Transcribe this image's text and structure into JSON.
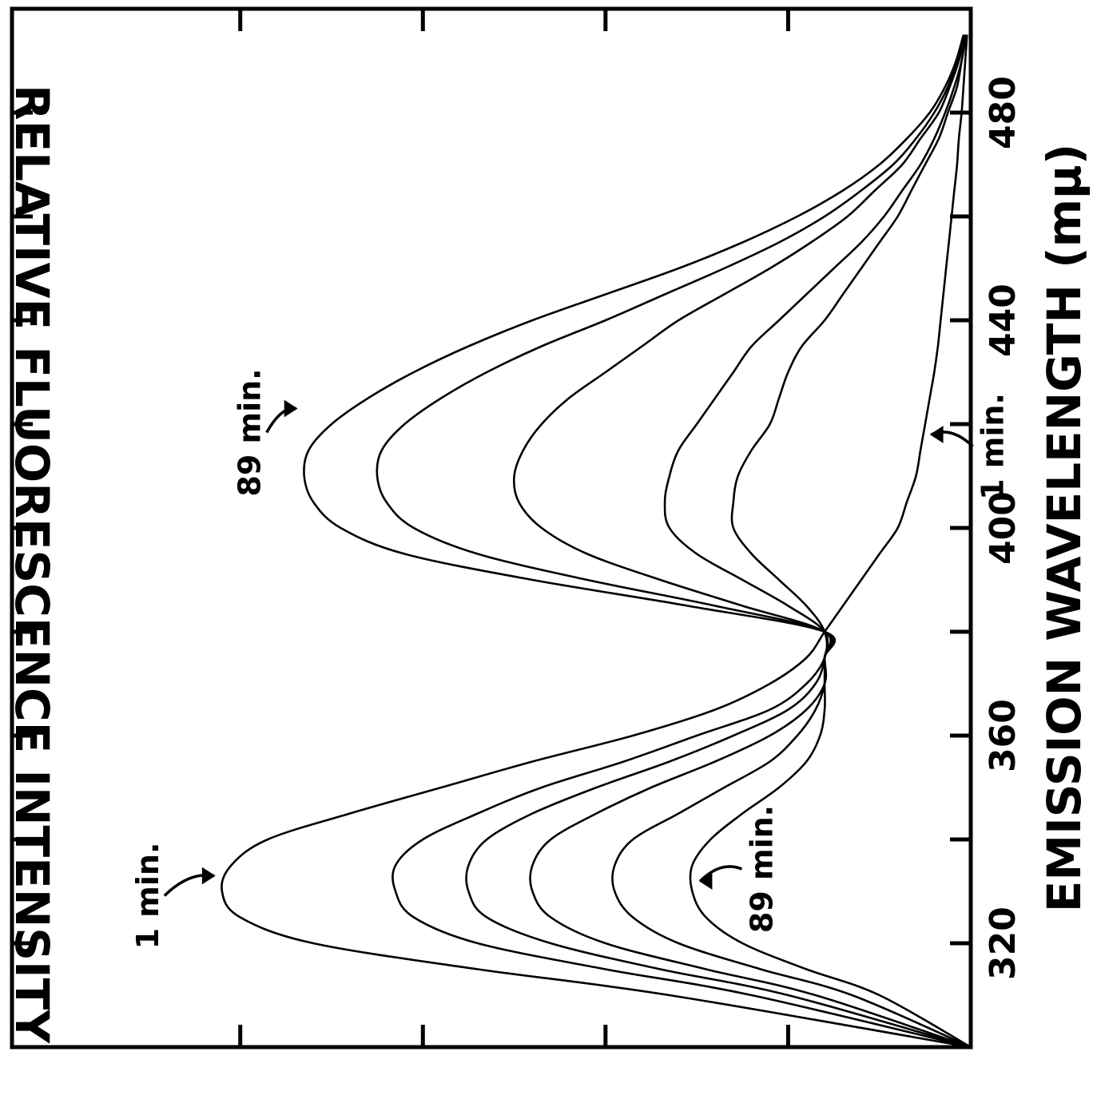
{
  "chart_data": {
    "type": "line",
    "title": "",
    "xlabel": "EMISSION WAVELENGTH (mμ)",
    "ylabel": "RELATIVE FLUORESCENCE INTENSITY",
    "xlim": [
      300,
      500
    ],
    "ylim": [
      0,
      105
    ],
    "x_ticks": [
      320,
      340,
      360,
      380,
      400,
      420,
      440,
      460,
      480
    ],
    "x_tick_labels": [
      "320",
      "360",
      "400",
      "440",
      "480"
    ],
    "y_ticks": [
      20,
      40,
      60,
      80
    ],
    "grid": false,
    "legend": "none",
    "x": [
      300,
      310,
      315,
      320,
      325,
      330,
      335,
      340,
      345,
      350,
      355,
      360,
      365,
      370,
      375,
      380,
      385,
      390,
      395,
      400,
      405,
      410,
      415,
      420,
      425,
      430,
      435,
      440,
      445,
      450,
      455,
      460,
      465,
      470,
      475,
      480,
      485,
      490,
      495
    ],
    "series": [
      {
        "values": [
          0,
          33,
          54,
          72,
          80,
          82,
          81,
          77,
          68,
          58,
          48,
          37,
          28,
          22,
          18,
          16,
          14,
          12,
          10,
          8,
          7,
          6,
          5.5,
          5,
          4.5,
          4,
          3.6,
          3.3,
          3,
          2.7,
          2.4,
          2.1,
          1.8,
          1.5,
          1.3,
          1,
          0.8,
          0.6,
          0.4
        ]
      },
      {
        "values": [
          0,
          24,
          40,
          54,
          61,
          63,
          63,
          60,
          54,
          47,
          38,
          30,
          22,
          18,
          16,
          16,
          18,
          21,
          24,
          26,
          26,
          25.5,
          24,
          22,
          21,
          20,
          18.5,
          16,
          14,
          12,
          10,
          8,
          6.5,
          5,
          3.5,
          2.5,
          1.5,
          1,
          0.5
        ]
      },
      {
        "values": [
          0,
          20,
          34,
          46,
          53,
          55,
          55,
          53,
          48,
          41,
          33,
          26,
          20,
          17,
          16,
          16,
          20,
          25,
          30,
          33,
          33.5,
          33,
          32,
          30,
          28,
          26,
          24,
          21,
          18,
          15,
          12,
          9.5,
          7.5,
          5.5,
          4,
          2.8,
          1.8,
          1,
          0.5
        ]
      },
      {
        "values": [
          0,
          17,
          29,
          40,
          46,
          48,
          48,
          46,
          41,
          35,
          28,
          22,
          18,
          16,
          16,
          16,
          25,
          34,
          42,
          47,
          49.5,
          50,
          49,
          47,
          44,
          40,
          36,
          32,
          27,
          22,
          17.5,
          13.5,
          10.5,
          7.5,
          5.5,
          3.5,
          2.3,
          1.3,
          0.6
        ]
      },
      {
        "values": [
          0,
          13,
          23,
          32,
          37,
          39,
          39,
          37,
          32,
          27,
          22,
          19,
          17,
          16,
          16,
          16,
          28,
          42,
          54,
          61,
          64,
          65,
          64.5,
          62,
          58,
          53,
          47,
          40,
          33.5,
          27,
          21,
          16,
          12,
          8.5,
          6,
          4,
          2.5,
          1.5,
          0.7
        ]
      },
      {
        "values": [
          0,
          10,
          18,
          25,
          29,
          30.5,
          30.5,
          28.5,
          25,
          21,
          18,
          16.5,
          16,
          16,
          16,
          16,
          31,
          48,
          62,
          69,
          72,
          73,
          72.5,
          70,
          66,
          61,
          55,
          48,
          40,
          32,
          25,
          19,
          14,
          10,
          7,
          4.5,
          2.8,
          1.6,
          0.8
        ]
      }
    ],
    "annotations": [
      {
        "text": "1 min.",
        "x": 333,
        "y": 82
      },
      {
        "text": "89 min.",
        "x": 332,
        "y": 30.5
      },
      {
        "text": "89 min.",
        "x": 423,
        "y": 73
      },
      {
        "text": "1 min.",
        "x": 418,
        "y": 5.2
      }
    ]
  }
}
